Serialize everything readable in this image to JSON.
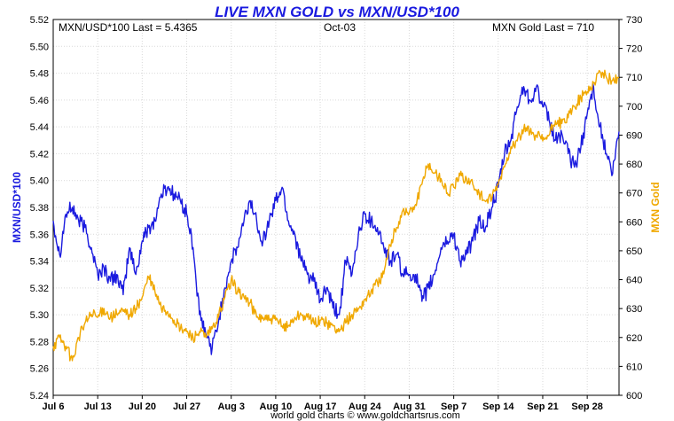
{
  "chart_data": {
    "type": "line",
    "title": "LIVE MXN GOLD vs MXN/USD*100",
    "header": {
      "left": "MXN/USD*100 Last = 5.4365",
      "center": "Oct-03",
      "right": "MXN Gold Last = 710"
    },
    "ylabel_left": "MXN/USD*100",
    "ylabel_right": "MXN Gold",
    "footer": "world gold charts © www.goldchartsrus.com",
    "x_range": [
      "Jul 6",
      "Oct 3"
    ],
    "x_ticks": [
      "Jul 6",
      "Jul 13",
      "Jul 20",
      "Jul 27",
      "Aug 3",
      "Aug 10",
      "Aug 17",
      "Aug 24",
      "Aug 31",
      "Sep 7",
      "Sep 14",
      "Sep 21",
      "Sep 28"
    ],
    "ylim_left": [
      5.24,
      5.52
    ],
    "ylim_right": [
      600,
      730
    ],
    "y_ticks_left": [
      "5.24",
      "5.26",
      "5.28",
      "5.30",
      "5.32",
      "5.34",
      "5.36",
      "5.38",
      "5.40",
      "5.42",
      "5.44",
      "5.46",
      "5.48",
      "5.50",
      "5.52"
    ],
    "y_ticks_right": [
      "600",
      "610",
      "620",
      "630",
      "640",
      "650",
      "660",
      "670",
      "680",
      "690",
      "700",
      "710",
      "720",
      "730"
    ],
    "grid": true,
    "series": [
      {
        "name": "MXN/USD*100",
        "axis": "left",
        "color": "#1a1adf",
        "x": [
          0,
          1,
          2,
          3,
          4,
          5,
          6,
          7,
          8,
          9,
          10,
          11,
          12,
          13,
          14,
          15,
          16,
          17,
          18,
          19,
          20,
          21,
          22,
          23,
          24,
          25,
          26,
          27,
          28,
          29,
          30,
          31,
          32,
          33,
          34,
          35,
          36,
          37,
          38,
          39,
          40,
          41,
          42,
          43,
          44,
          45,
          46,
          47,
          48,
          49,
          50,
          51,
          52,
          53,
          54,
          55,
          56,
          57,
          58,
          59,
          60,
          61,
          62,
          63,
          64,
          65,
          66,
          67,
          68,
          69,
          70,
          71,
          72,
          73,
          74,
          75,
          76,
          77,
          78,
          79,
          80,
          81,
          82,
          83,
          84,
          85,
          86,
          87,
          88,
          89
        ],
        "values": [
          5.37,
          5.345,
          5.375,
          5.38,
          5.37,
          5.365,
          5.35,
          5.33,
          5.335,
          5.325,
          5.33,
          5.315,
          5.35,
          5.33,
          5.355,
          5.365,
          5.37,
          5.39,
          5.395,
          5.39,
          5.385,
          5.375,
          5.35,
          5.3,
          5.285,
          5.275,
          5.295,
          5.32,
          5.34,
          5.35,
          5.37,
          5.385,
          5.37,
          5.355,
          5.37,
          5.385,
          5.395,
          5.37,
          5.36,
          5.34,
          5.33,
          5.325,
          5.31,
          5.32,
          5.305,
          5.3,
          5.34,
          5.33,
          5.36,
          5.375,
          5.37,
          5.365,
          5.35,
          5.34,
          5.345,
          5.33,
          5.33,
          5.33,
          5.31,
          5.32,
          5.33,
          5.35,
          5.355,
          5.36,
          5.34,
          5.345,
          5.355,
          5.37,
          5.365,
          5.38,
          5.395,
          5.42,
          5.43,
          5.455,
          5.47,
          5.46,
          5.47,
          5.455,
          5.445,
          5.43,
          5.435,
          5.42,
          5.41,
          5.425,
          5.45,
          5.47,
          5.44,
          5.42,
          5.405,
          5.4365
        ]
      },
      {
        "name": "MXN Gold",
        "axis": "right",
        "color": "#f0a800",
        "x": [
          0,
          1,
          2,
          3,
          4,
          5,
          6,
          7,
          8,
          9,
          10,
          11,
          12,
          13,
          14,
          15,
          16,
          17,
          18,
          19,
          20,
          21,
          22,
          23,
          24,
          25,
          26,
          27,
          28,
          29,
          30,
          31,
          32,
          33,
          34,
          35,
          36,
          37,
          38,
          39,
          40,
          41,
          42,
          43,
          44,
          45,
          46,
          47,
          48,
          49,
          50,
          51,
          52,
          53,
          54,
          55,
          56,
          57,
          58,
          59,
          60,
          61,
          62,
          63,
          64,
          65,
          66,
          67,
          68,
          69,
          70,
          71,
          72,
          73,
          74,
          75,
          76,
          77,
          78,
          79,
          80,
          81,
          82,
          83,
          84,
          85,
          86,
          87,
          88,
          89
        ],
        "values": [
          617,
          620,
          617,
          612,
          620,
          625,
          628,
          627,
          630,
          627,
          628,
          629,
          628,
          630,
          634,
          641,
          636,
          630,
          629,
          626,
          623,
          622,
          620,
          622,
          620,
          623,
          627,
          634,
          640,
          636,
          634,
          632,
          627,
          627,
          626,
          626,
          624,
          624,
          627,
          628,
          627,
          625,
          626,
          625,
          624,
          622,
          625,
          628,
          630,
          633,
          636,
          639,
          642,
          652,
          658,
          664,
          663,
          666,
          673,
          680,
          677,
          675,
          670,
          672,
          676,
          675,
          673,
          670,
          667,
          668,
          673,
          679,
          686,
          688,
          692,
          691,
          690,
          688,
          690,
          695,
          694,
          696,
          700,
          703,
          705,
          708,
          712,
          710,
          709,
          710
        ]
      }
    ]
  }
}
